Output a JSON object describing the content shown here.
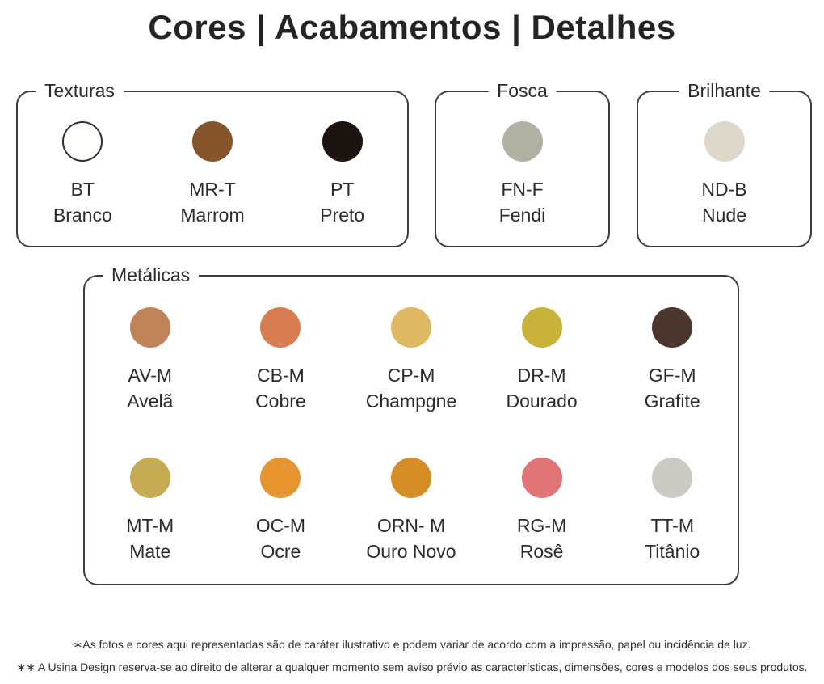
{
  "title": "Cores | Acabamentos | Detalhes",
  "groups": {
    "texturas": {
      "label": "Texturas",
      "swatches": [
        {
          "code": "BT",
          "name": "Branco",
          "color": "#fdfdfc"
        },
        {
          "code": "MR-T",
          "name": "Marrom",
          "color": "#85542b"
        },
        {
          "code": "PT",
          "name": "Preto",
          "color": "#1b130f"
        }
      ]
    },
    "fosca": {
      "label": "Fosca",
      "swatches": [
        {
          "code": "FN-F",
          "name": "Fendi",
          "color": "#b2b0a3"
        }
      ]
    },
    "brilhante": {
      "label": "Brilhante",
      "swatches": [
        {
          "code": "ND-B",
          "name": "Nude",
          "color": "#dcd8cc"
        }
      ]
    },
    "metalicas": {
      "label": "Metálicas",
      "rows": [
        [
          {
            "code": "AV-M",
            "name": "Avelã",
            "color": "#c08257"
          },
          {
            "code": "CB-M",
            "name": "Cobre",
            "color": "#d87c52"
          },
          {
            "code": "CP-M",
            "name": "Champgne",
            "color": "#dfb862"
          },
          {
            "code": "DR-M",
            "name": "Dourado",
            "color": "#c8b23a"
          },
          {
            "code": "GF-M",
            "name": "Grafite",
            "color": "#4a362c"
          }
        ],
        [
          {
            "code": "MT-M",
            "name": "Mate",
            "color": "#c5ac52"
          },
          {
            "code": "OC-M",
            "name": "Ocre",
            "color": "#e6952f"
          },
          {
            "code": "ORN- M",
            "name": "Ouro Novo",
            "color": "#d78d26"
          },
          {
            "code": "RG-M",
            "name": "Rosê",
            "color": "#e07476"
          },
          {
            "code": "TT-M",
            "name": "Titânio",
            "color": "#cbcbc3"
          }
        ]
      ]
    }
  },
  "footnotes": [
    "∗As fotos e cores aqui representadas são de caráter ilustrativo e podem variar de acordo com a impressão, papel ou incidência de luz.",
    "∗∗ A Usina Design reserva-se ao direito de alterar a qualquer momento sem aviso prévio as características, dimensões, cores e modelos dos seus produtos."
  ]
}
